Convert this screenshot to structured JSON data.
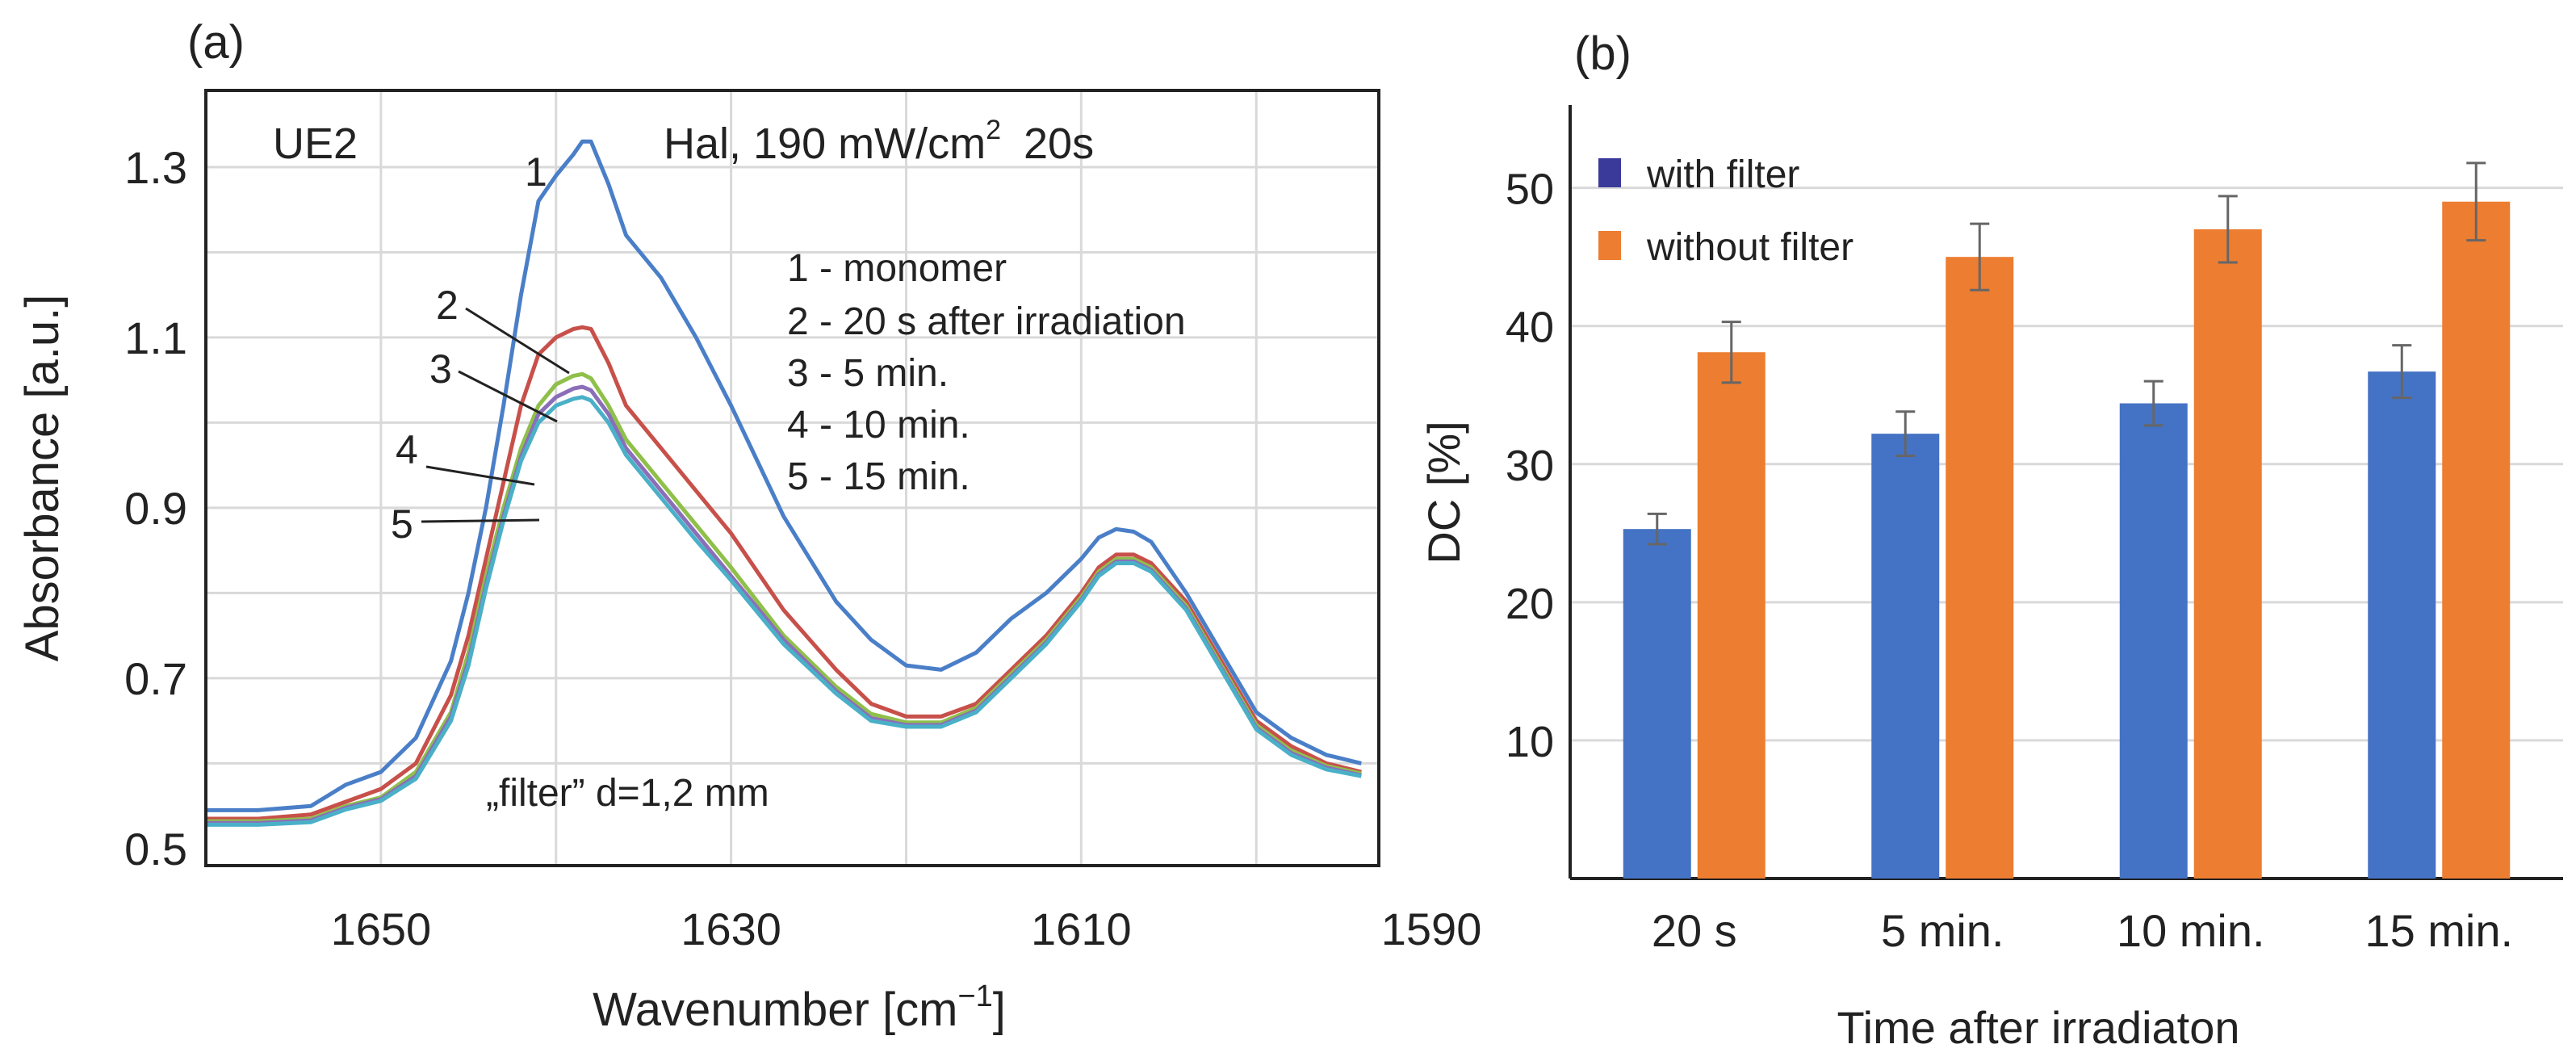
{
  "chart_data": [
    {
      "panel": "(a)",
      "type": "line",
      "title": "Hal, 190 mW/cm² 20s",
      "title_main": "Hal, 190 mW/cm",
      "title_sup": "2",
      "title_tail": "20s",
      "corner_label": "UE2",
      "xlabel_main": "Wavenumber [cm",
      "xlabel_sup": "−1",
      "xlabel_close": "]",
      "ylabel": "Absorbance [a.u.]",
      "xlim": [
        1660,
        1593
      ],
      "ylim": [
        0.48,
        1.39
      ],
      "x_ticks": [
        1650,
        1630,
        1610,
        1590
      ],
      "x_tick_labels": [
        "1650",
        "1630",
        "1610",
        "1590"
      ],
      "y_ticks": [
        0.5,
        0.7,
        0.9,
        1.1,
        1.3
      ],
      "y_tick_labels": [
        "0.5",
        "0.7",
        "0.9",
        "1.1",
        "1.3"
      ],
      "x_grid": [
        1660,
        1650,
        1640,
        1630,
        1620,
        1610,
        1600
      ],
      "y_grid": [
        0.6,
        0.7,
        0.8,
        0.9,
        1.0,
        1.1,
        1.2,
        1.3
      ],
      "legend_lines": [
        "1 - monomer",
        "2 - 20 s after irradiation",
        "3 - 5 min.",
        "4 - 10 min.",
        "5 - 15 min."
      ],
      "annotation": "„filter” d=1,2 mm",
      "series": [
        {
          "name": "1",
          "color": "#4a7fc8",
          "x": [
            1660,
            1657,
            1654,
            1652,
            1650,
            1648,
            1646,
            1645,
            1644,
            1643,
            1642,
            1641,
            1640,
            1639,
            1638.5,
            1638,
            1637,
            1636,
            1634,
            1632,
            1630,
            1627,
            1624,
            1622,
            1620,
            1618,
            1616,
            1614,
            1612,
            1610,
            1609,
            1608,
            1607,
            1606,
            1604,
            1602,
            1600,
            1598,
            1596,
            1594
          ],
          "y": [
            0.545,
            0.545,
            0.55,
            0.575,
            0.59,
            0.63,
            0.72,
            0.8,
            0.9,
            1.02,
            1.15,
            1.26,
            1.29,
            1.315,
            1.33,
            1.33,
            1.28,
            1.22,
            1.17,
            1.1,
            1.02,
            0.89,
            0.79,
            0.745,
            0.715,
            0.71,
            0.73,
            0.77,
            0.8,
            0.84,
            0.865,
            0.875,
            0.872,
            0.86,
            0.8,
            0.73,
            0.66,
            0.63,
            0.61,
            0.6
          ]
        },
        {
          "name": "2",
          "color": "#c8504a",
          "x": [
            1660,
            1657,
            1654,
            1652,
            1650,
            1648,
            1646,
            1645,
            1644,
            1643,
            1642,
            1641,
            1640,
            1639,
            1638.5,
            1638,
            1637,
            1636,
            1634,
            1632,
            1630,
            1627,
            1624,
            1622,
            1620,
            1618,
            1616,
            1614,
            1612,
            1610,
            1609,
            1608,
            1607,
            1606,
            1604,
            1602,
            1600,
            1598,
            1596,
            1594
          ],
          "y": [
            0.535,
            0.535,
            0.54,
            0.555,
            0.57,
            0.6,
            0.68,
            0.75,
            0.84,
            0.93,
            1.02,
            1.08,
            1.1,
            1.11,
            1.112,
            1.11,
            1.07,
            1.02,
            0.97,
            0.92,
            0.87,
            0.78,
            0.71,
            0.67,
            0.655,
            0.655,
            0.67,
            0.71,
            0.75,
            0.8,
            0.83,
            0.845,
            0.845,
            0.835,
            0.79,
            0.72,
            0.65,
            0.62,
            0.6,
            0.59
          ]
        },
        {
          "name": "3",
          "color": "#8fc04a",
          "x": [
            1660,
            1657,
            1654,
            1652,
            1650,
            1648,
            1646,
            1645,
            1644,
            1643,
            1642,
            1641,
            1640,
            1639,
            1638.5,
            1638,
            1637,
            1636,
            1634,
            1632,
            1630,
            1627,
            1624,
            1622,
            1620,
            1618,
            1616,
            1614,
            1612,
            1610,
            1609,
            1608,
            1607,
            1606,
            1604,
            1602,
            1600,
            1598,
            1596,
            1594
          ],
          "y": [
            0.532,
            0.532,
            0.535,
            0.55,
            0.56,
            0.59,
            0.66,
            0.73,
            0.82,
            0.9,
            0.97,
            1.02,
            1.045,
            1.055,
            1.057,
            1.052,
            1.02,
            0.98,
            0.93,
            0.88,
            0.83,
            0.75,
            0.69,
            0.658,
            0.648,
            0.648,
            0.665,
            0.705,
            0.745,
            0.795,
            0.825,
            0.84,
            0.84,
            0.83,
            0.785,
            0.715,
            0.645,
            0.615,
            0.597,
            0.588
          ]
        },
        {
          "name": "4",
          "color": "#8a6fb8",
          "x": [
            1660,
            1657,
            1654,
            1652,
            1650,
            1648,
            1646,
            1645,
            1644,
            1643,
            1642,
            1641,
            1640,
            1639,
            1638.5,
            1638,
            1637,
            1636,
            1634,
            1632,
            1630,
            1627,
            1624,
            1622,
            1620,
            1618,
            1616,
            1614,
            1612,
            1610,
            1609,
            1608,
            1607,
            1606,
            1604,
            1602,
            1600,
            1598,
            1596,
            1594
          ],
          "y": [
            0.53,
            0.53,
            0.533,
            0.548,
            0.558,
            0.585,
            0.655,
            0.72,
            0.81,
            0.89,
            0.96,
            1.01,
            1.03,
            1.04,
            1.042,
            1.038,
            1.01,
            0.97,
            0.92,
            0.87,
            0.82,
            0.745,
            0.685,
            0.653,
            0.645,
            0.645,
            0.662,
            0.702,
            0.742,
            0.792,
            0.822,
            0.837,
            0.837,
            0.827,
            0.782,
            0.712,
            0.642,
            0.612,
            0.595,
            0.586
          ]
        },
        {
          "name": "5",
          "color": "#4ab0c8",
          "x": [
            1660,
            1657,
            1654,
            1652,
            1650,
            1648,
            1646,
            1645,
            1644,
            1643,
            1642,
            1641,
            1640,
            1639,
            1638.5,
            1638,
            1637,
            1636,
            1634,
            1632,
            1630,
            1627,
            1624,
            1622,
            1620,
            1618,
            1616,
            1614,
            1612,
            1610,
            1609,
            1608,
            1607,
            1606,
            1604,
            1602,
            1600,
            1598,
            1596,
            1594
          ],
          "y": [
            0.528,
            0.528,
            0.531,
            0.546,
            0.556,
            0.582,
            0.65,
            0.715,
            0.805,
            0.885,
            0.955,
            1.0,
            1.02,
            1.028,
            1.03,
            1.026,
            1.0,
            0.962,
            0.912,
            0.862,
            0.815,
            0.74,
            0.682,
            0.65,
            0.643,
            0.643,
            0.66,
            0.7,
            0.74,
            0.79,
            0.82,
            0.835,
            0.835,
            0.825,
            0.78,
            0.71,
            0.64,
            0.61,
            0.593,
            0.585
          ]
        }
      ]
    },
    {
      "panel": "(b)",
      "type": "bar",
      "xlabel": "Time  after irradiaton",
      "ylabel": "DC [%]",
      "ylim": [
        0,
        56
      ],
      "y_ticks": [
        10,
        20,
        30,
        40,
        50
      ],
      "y_tick_labels": [
        "10",
        "20",
        "30",
        "40",
        "50"
      ],
      "categories": [
        "20 s",
        "5 min.",
        "10 min.",
        "15 min."
      ],
      "legend": [
        {
          "label": "with filter",
          "color": "#3a3a9a"
        },
        {
          "label": "without filter",
          "color": "#ed7d31"
        }
      ],
      "series": [
        {
          "name": "with filter",
          "color": "#4472c4",
          "values": [
            25.3,
            32.2,
            34.4,
            36.7
          ],
          "errors": [
            1.1,
            1.6,
            1.6,
            1.9
          ]
        },
        {
          "name": "without filter",
          "color": "#ed7d31",
          "values": [
            38.1,
            45.0,
            47.0,
            49.0
          ],
          "errors": [
            2.2,
            2.4,
            2.4,
            2.8
          ]
        }
      ]
    }
  ]
}
